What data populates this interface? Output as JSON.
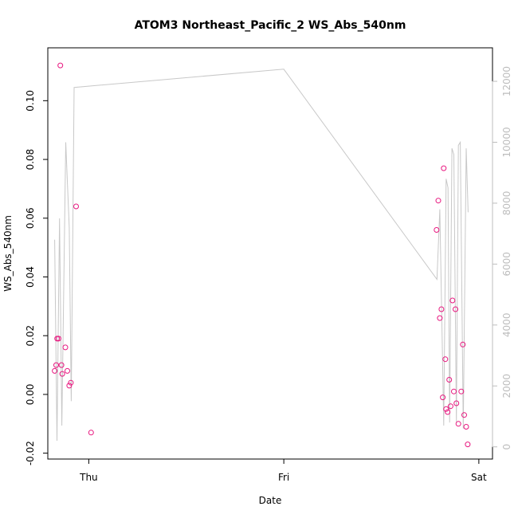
{
  "chart_data": {
    "type": "scatter",
    "title": "ATOM3 Northeast_Pacific_2 WS_Abs_540nm",
    "xlabel": "Date",
    "ylabel": "WS_Abs_540nm",
    "x_ticks": [
      {
        "value": 0.0,
        "label": "Thu"
      },
      {
        "value": 1.0,
        "label": "Fri"
      },
      {
        "value": 2.0,
        "label": "Sat"
      }
    ],
    "xlim": [
      -0.21,
      2.07
    ],
    "y_ticks": [
      -0.02,
      0.0,
      0.02,
      0.04,
      0.06,
      0.08,
      0.1
    ],
    "ylim": [
      -0.022,
      0.118
    ],
    "y2_ticks": [
      0,
      2000,
      4000,
      6000,
      8000,
      10000,
      12000
    ],
    "y2lim": [
      -400,
      13100
    ],
    "grid": false,
    "colors": {
      "points": "#e8177f",
      "altitude_line": "#c8c8c8",
      "axis": "#000000",
      "right_axis": "#bdbdbd"
    },
    "series": [
      {
        "type": "scatter",
        "values": [
          [
            -0.175,
            0.008
          ],
          [
            -0.167,
            0.01
          ],
          [
            -0.162,
            0.019
          ],
          [
            -0.155,
            0.019
          ],
          [
            -0.146,
            0.112
          ],
          [
            -0.14,
            0.01
          ],
          [
            -0.136,
            0.007
          ],
          [
            -0.12,
            0.016
          ],
          [
            -0.11,
            0.008
          ],
          [
            -0.1,
            0.003
          ],
          [
            -0.092,
            0.004
          ],
          [
            -0.065,
            0.064
          ],
          [
            0.012,
            -0.013
          ],
          [
            1.783,
            0.056
          ],
          [
            1.792,
            0.066
          ],
          [
            1.8,
            0.026
          ],
          [
            1.808,
            0.029
          ],
          [
            1.815,
            -0.001
          ],
          [
            1.82,
            0.077
          ],
          [
            1.828,
            0.012
          ],
          [
            1.832,
            -0.005
          ],
          [
            1.84,
            -0.006
          ],
          [
            1.848,
            0.005
          ],
          [
            1.855,
            -0.004
          ],
          [
            1.865,
            0.032
          ],
          [
            1.872,
            0.001
          ],
          [
            1.88,
            0.029
          ],
          [
            1.885,
            -0.003
          ],
          [
            1.895,
            -0.01
          ],
          [
            1.91,
            0.001
          ],
          [
            1.918,
            0.017
          ],
          [
            1.925,
            -0.007
          ],
          [
            1.935,
            -0.011
          ],
          [
            1.943,
            -0.017
          ]
        ]
      },
      {
        "type": "line",
        "axis": "right",
        "values": [
          [
            -0.175,
            6800
          ],
          [
            -0.163,
            200
          ],
          [
            -0.15,
            7500
          ],
          [
            -0.138,
            700
          ],
          [
            -0.118,
            10000
          ],
          [
            -0.1,
            7200
          ],
          [
            -0.09,
            1500
          ],
          [
            -0.075,
            11800
          ],
          [
            1.0,
            12400
          ],
          [
            1.785,
            5500
          ],
          [
            1.8,
            7800
          ],
          [
            1.82,
            700
          ],
          [
            1.832,
            8800
          ],
          [
            1.842,
            8500
          ],
          [
            1.85,
            800
          ],
          [
            1.862,
            9800
          ],
          [
            1.872,
            9600
          ],
          [
            1.885,
            800
          ],
          [
            1.895,
            9900
          ],
          [
            1.905,
            10000
          ],
          [
            1.92,
            600
          ],
          [
            1.935,
            9800
          ],
          [
            1.945,
            7700
          ]
        ]
      }
    ]
  }
}
